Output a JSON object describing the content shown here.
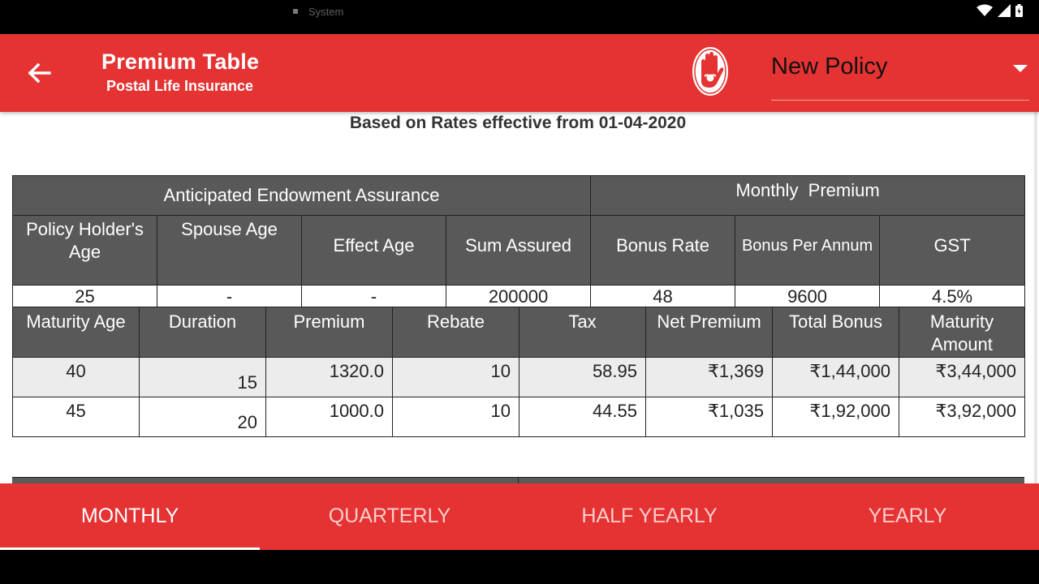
{
  "status_bar": {
    "system_label": "System"
  },
  "app_bar": {
    "title": "Premium Table",
    "subtitle": "Postal Life Insurance",
    "policy_select": {
      "value": "New Policy"
    }
  },
  "rates_note": "Based on Rates effective from 01-04-2020",
  "plan_table": {
    "plan_name": "Anticipated Endowment Assurance",
    "mode_label": "Monthly  Premium",
    "columns": [
      "Policy Holder's Age",
      "Spouse Age",
      "Effect Age",
      "Sum Assured",
      "Bonus Rate",
      "Bonus Per Annum",
      "GST"
    ],
    "values": [
      "25",
      "-",
      "-",
      "200000",
      "48",
      "9600",
      "4.5%"
    ]
  },
  "premium_table": {
    "columns": [
      "Maturity Age",
      "Duration",
      "Premium",
      "Rebate",
      "Tax",
      "Net Premium",
      "Total Bonus",
      "Maturity Amount"
    ],
    "rows": [
      [
        "40",
        "15",
        "1320.0",
        "10",
        "58.95",
        "₹1,369",
        "₹1,44,000",
        "₹3,44,000"
      ],
      [
        "45",
        "20",
        "1000.0",
        "10",
        "44.55",
        "₹1,035",
        "₹1,92,000",
        "₹3,92,000"
      ]
    ]
  },
  "tabs": [
    "MONTHLY",
    "QUARTERLY",
    "HALF YEARLY",
    "YEARLY"
  ],
  "active_tab": "MONTHLY",
  "colors": {
    "primary": "#e53232",
    "header_cell": "#595959",
    "alt_row": "#ececec"
  }
}
